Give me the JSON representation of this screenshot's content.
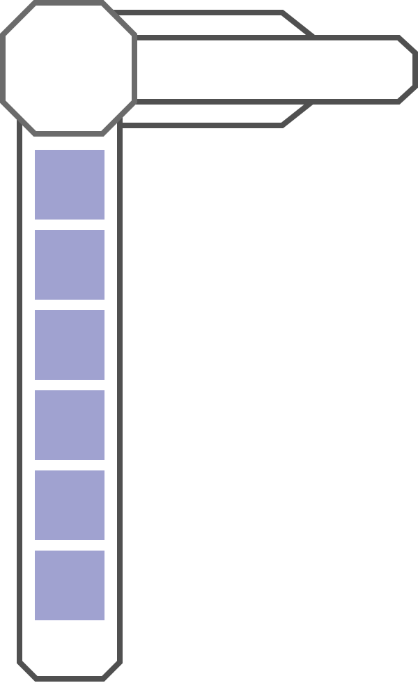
{
  "colors": {
    "background": "#ffffff",
    "outline": "#505050",
    "hub_outline": "#6b6b6b",
    "panel_fill": "#ffffff",
    "slot_fill": "#a0a2d0"
  },
  "icons": {
    "hub": "octagon-icon",
    "arm": "arm-panel",
    "column": "vertical-rail"
  },
  "slots": [
    {
      "id": "slot-1"
    },
    {
      "id": "slot-2"
    },
    {
      "id": "slot-3"
    },
    {
      "id": "slot-4"
    },
    {
      "id": "slot-5"
    },
    {
      "id": "slot-6"
    }
  ]
}
